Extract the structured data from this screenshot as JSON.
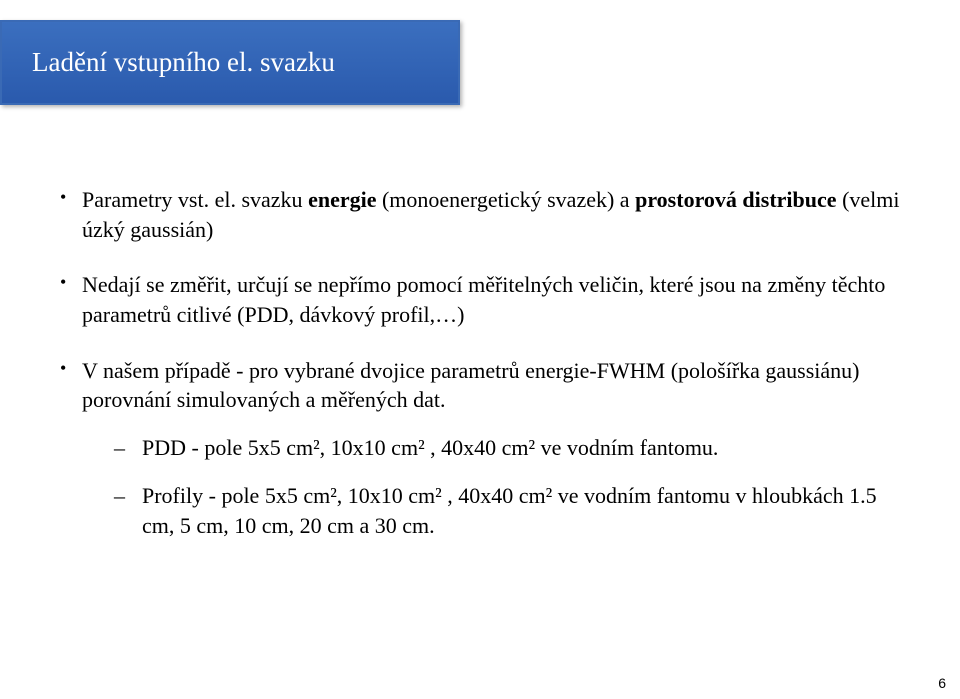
{
  "title": {
    "text": "Ladění vstupního el. svazku",
    "bg_gradient_top": "#3b6fbf",
    "bg_gradient_bottom": "#2a5aad",
    "border_color": "#3a6ab5",
    "text_color": "#ffffff",
    "fontsize": 27
  },
  "body": {
    "text_color": "#000000",
    "fontsize": 22,
    "bullets": [
      {
        "segments": [
          {
            "text": "Parametry vst. el. svazku ",
            "bold": false
          },
          {
            "text": "energie",
            "bold": true
          },
          {
            "text": " (monoenergetický svazek) a ",
            "bold": false
          },
          {
            "text": "prostorová distribuce",
            "bold": true
          },
          {
            "text": " (velmi úzký gaussián)",
            "bold": false
          }
        ],
        "sub": []
      },
      {
        "segments": [
          {
            "text": "Nedají se změřit, určují se nepřímo pomocí měřitelných veličin, které jsou na změny těchto parametrů citlivé (PDD, dávkový profil,…)",
            "bold": false
          }
        ],
        "sub": []
      },
      {
        "segments": [
          {
            "text": "V našem případě - pro vybrané dvojice parametrů energie-FWHM (pološířka gaussiánu) porovnání simulovaných a měřených dat.",
            "bold": false
          }
        ],
        "sub": [
          "PDD - pole 5x5 cm², 10x10 cm² , 40x40 cm² ve vodním fantomu.",
          "Profily - pole 5x5 cm², 10x10 cm² , 40x40 cm² ve vodním fantomu v hloubkách 1.5 cm, 5 cm, 10 cm, 20 cm a 30 cm."
        ]
      }
    ]
  },
  "page_number": "6",
  "page_number_color": "#000000",
  "background_color": "#ffffff"
}
